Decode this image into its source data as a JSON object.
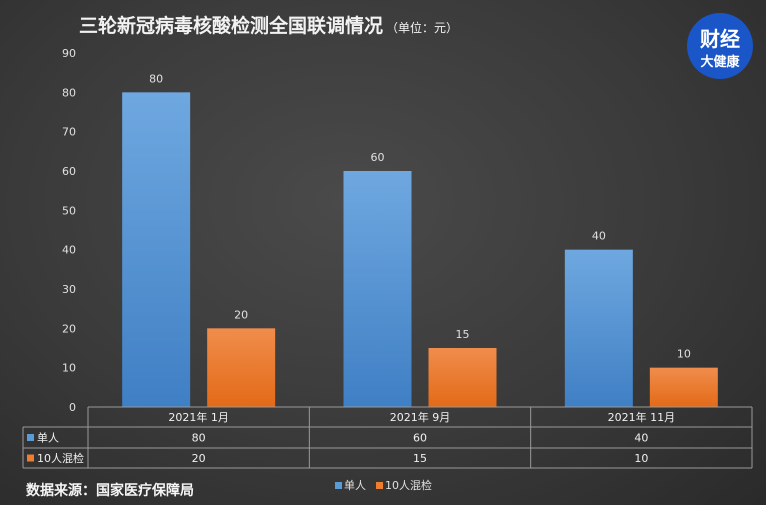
{
  "chart_data": {
    "type": "bar",
    "title": "三轮新冠病毒核酸检测全国联调情况",
    "title_unit": "（单位：元）",
    "categories": [
      "2021年 1月",
      "2021年 9月",
      "2021年 11月"
    ],
    "series": [
      {
        "name": "单人",
        "values": [
          80,
          60,
          40
        ],
        "color": "#5b9bd5"
      },
      {
        "name": "10人混检",
        "values": [
          20,
          15,
          10
        ],
        "color": "#ed7d31"
      }
    ],
    "ylim": [
      0,
      90
    ],
    "yticks": [
      0,
      10,
      20,
      30,
      40,
      50,
      60,
      70,
      80,
      90
    ],
    "grid": false,
    "legend": "bottom",
    "data_table": true
  },
  "source": "数据来源：国家医疗保障局",
  "logo": {
    "line1": "财经",
    "line2": "大健康",
    "color": "#1a56c8"
  }
}
